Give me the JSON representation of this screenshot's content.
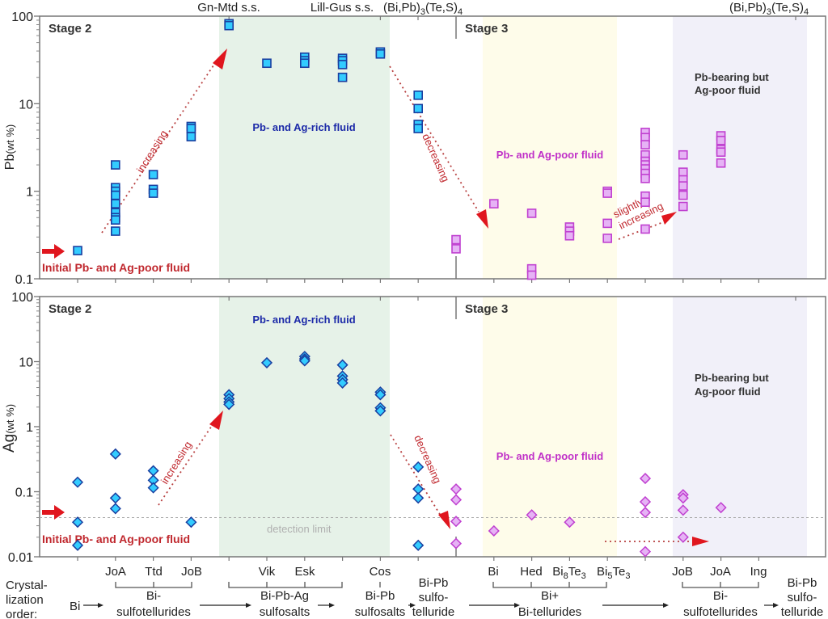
{
  "chart_data": [
    {
      "type": "scatter",
      "panel": "Pb",
      "ylabel_main": "Pb",
      "ylabel_unit": "(wt %)",
      "yscale": "log",
      "ylim": [
        0.1,
        100
      ],
      "yticks": [
        "100",
        "10",
        "1",
        "0.1"
      ],
      "stage_labels": [
        "Stage 2",
        "Stage 3"
      ],
      "annotations": {
        "initial": "Initial Pb- and Ag-poor fluid",
        "rich": "Pb- and Ag-rich fluid",
        "poor": "Pb- and Ag-poor fluid",
        "bearing_line1": "Pb-bearing but",
        "bearing_line2": "Ag-poor fluid",
        "increasing": "increasing",
        "decreasing": "decreasing",
        "slightly_line1": "slightly",
        "slightly_line2": "increasing"
      },
      "top_axis_labels": {
        "gn_mtd": "Gn-Mtd s.s.",
        "lill_gus": "Lill-Gus s.s.",
        "bipbtes_1": "(Bi,Pb)",
        "bipbtes_2": "3",
        "bipbtes_3": "(Te,S)",
        "bipbtes_4": "4"
      },
      "series": [
        {
          "name": "Stage 2",
          "marker": "square",
          "color": "#33ccff",
          "edge": "#1a3fa0",
          "points": [
            [
              1,
              0.21
            ],
            [
              2,
              2.0
            ],
            [
              2,
              1.1
            ],
            [
              2,
              1.0
            ],
            [
              2,
              0.9
            ],
            [
              2,
              0.72
            ],
            [
              2,
              0.57
            ],
            [
              2,
              0.5
            ],
            [
              2,
              0.47
            ],
            [
              2,
              0.35
            ],
            [
              3,
              1.55
            ],
            [
              3,
              1.05
            ],
            [
              3,
              0.95
            ],
            [
              4,
              5.5
            ],
            [
              4,
              5.2
            ],
            [
              4,
              4.2
            ],
            [
              5,
              82
            ],
            [
              5,
              78
            ],
            [
              6,
              29
            ],
            [
              7,
              34
            ],
            [
              7,
              31
            ],
            [
              7,
              29
            ],
            [
              8,
              33
            ],
            [
              8,
              31
            ],
            [
              8,
              28
            ],
            [
              8,
              20
            ],
            [
              9,
              39
            ],
            [
              9,
              37
            ],
            [
              10,
              12.5
            ],
            [
              10,
              8.8
            ],
            [
              10,
              5.8
            ],
            [
              10,
              5.2
            ]
          ]
        },
        {
          "name": "Stage 3",
          "marker": "square",
          "color": "#e6b3f5",
          "edge": "#c040d0",
          "points": [
            [
              11,
              0.28
            ],
            [
              11,
              0.22
            ],
            [
              12,
              0.72
            ],
            [
              13,
              0.56
            ],
            [
              13,
              0.13
            ],
            [
              13,
              0.11
            ],
            [
              14,
              0.39
            ],
            [
              14,
              0.35
            ],
            [
              14,
              0.31
            ],
            [
              15,
              1.0
            ],
            [
              15,
              0.95
            ],
            [
              15,
              0.43
            ],
            [
              15,
              0.29
            ],
            [
              16,
              4.7
            ],
            [
              16,
              4.1
            ],
            [
              16,
              3.4
            ],
            [
              16,
              2.6
            ],
            [
              16,
              2.2
            ],
            [
              16,
              2.0
            ],
            [
              16,
              1.8
            ],
            [
              16,
              1.6
            ],
            [
              16,
              1.4
            ],
            [
              16,
              0.88
            ],
            [
              16,
              0.75
            ],
            [
              16,
              0.37
            ],
            [
              17,
              2.6
            ],
            [
              17,
              1.65
            ],
            [
              17,
              1.35
            ],
            [
              17,
              1.15
            ],
            [
              17,
              0.9
            ],
            [
              17,
              0.67
            ],
            [
              18,
              4.3
            ],
            [
              18,
              3.8
            ],
            [
              18,
              3.0
            ],
            [
              18,
              2.8
            ],
            [
              18,
              2.1
            ]
          ]
        }
      ]
    },
    {
      "type": "scatter",
      "panel": "Ag",
      "ylabel_main": "Ag",
      "ylabel_unit": "(wt %)",
      "yscale": "log",
      "ylim": [
        0.01,
        100
      ],
      "yticks": [
        "100",
        "10",
        "1",
        "0.1",
        "0.01"
      ],
      "stage_labels": [
        "Stage 2",
        "Stage 3"
      ],
      "annotations": {
        "initial": "Initial Pb- and Ag-poor fluid",
        "rich": "Pb- and Ag-rich fluid",
        "poor": "Pb- and Ag-poor fluid",
        "bearing_line1": "Pb-bearing but",
        "bearing_line2": "Ag-poor fluid",
        "increasing": "increasing",
        "decreasing": "decreasing",
        "detection": "detection limit"
      },
      "detection_limit": 0.04,
      "series": [
        {
          "name": "Stage 2",
          "marker": "diamond",
          "color": "#33ccff",
          "edge": "#1a3fa0",
          "points": [
            [
              1,
              0.14
            ],
            [
              1,
              0.034
            ],
            [
              1,
              0.015
            ],
            [
              2,
              0.38
            ],
            [
              2,
              0.08
            ],
            [
              2,
              0.055
            ],
            [
              3,
              0.21
            ],
            [
              3,
              0.15
            ],
            [
              3,
              0.115
            ],
            [
              4,
              0.034
            ],
            [
              5,
              3.1
            ],
            [
              5,
              2.7
            ],
            [
              5,
              2.4
            ],
            [
              5,
              2.2
            ],
            [
              6,
              9.6
            ],
            [
              7,
              12
            ],
            [
              7,
              11
            ],
            [
              7,
              10.3
            ],
            [
              8,
              8.9
            ],
            [
              8,
              6.0
            ],
            [
              8,
              5.3
            ],
            [
              8,
              4.7
            ],
            [
              9,
              3.4
            ],
            [
              9,
              3.1
            ],
            [
              9,
              1.95
            ],
            [
              9,
              1.75
            ],
            [
              10,
              0.24
            ],
            [
              10,
              0.11
            ],
            [
              10,
              0.08
            ],
            [
              10,
              0.015
            ]
          ]
        },
        {
          "name": "Stage 3",
          "marker": "diamond",
          "color": "#e6b3f5",
          "edge": "#c040d0",
          "points": [
            [
              11,
              0.11
            ],
            [
              11,
              0.075
            ],
            [
              11,
              0.035
            ],
            [
              11,
              0.016
            ],
            [
              12,
              0.025
            ],
            [
              13,
              0.044
            ],
            [
              14,
              0.034
            ],
            [
              16,
              0.16
            ],
            [
              16,
              0.07
            ],
            [
              16,
              0.048
            ],
            [
              16,
              0.012
            ],
            [
              17,
              0.09
            ],
            [
              17,
              0.08
            ],
            [
              17,
              0.052
            ],
            [
              17,
              0.02
            ],
            [
              18,
              0.057
            ]
          ]
        }
      ]
    }
  ],
  "x_positions": 19,
  "mineral_labels": {
    "joa1": "JoA",
    "ttd": "Ttd",
    "job1": "JoB",
    "vik": "Vik",
    "esk": "Esk",
    "cos": "Cos",
    "bi": "Bi",
    "hed": "Hed",
    "bi8te3_a": "Bi",
    "bi8te3_b": "8",
    "bi8te3_c": "Te",
    "bi8te3_d": "3",
    "bi5te3_a": "Bi",
    "bi5te3_b": "5",
    "bi5te3_c": "Te",
    "bi5te3_d": "3",
    "job2": "JoB",
    "joa2": "JoA",
    "ing": "Ing"
  },
  "crystallization": {
    "label_line1": "Crystal-",
    "label_line2": "lization",
    "label_line3": "order:",
    "start": "Bi",
    "g1_line1": "Bi-",
    "g1_line2": "sulfotellurides",
    "g2_line1": "Bi-Pb-Ag",
    "g2_line2": "sulfosalts",
    "g3_line1": "Bi-Pb",
    "g3_line2": "sulfosalts",
    "g4_line1": "Bi-Pb",
    "g4_line2": "sulfo-",
    "g4_line3": "telluride",
    "g5_line1": "Bi+",
    "g5_line2": "Bi-tellurides",
    "g6_line1": "Bi-",
    "g6_line2": "sulfotellurides",
    "g7_line1": "Bi-Pb",
    "g7_line2": "sulfo-",
    "g7_line3": "telluride"
  },
  "colors": {
    "rich_band": "#e6f2e8",
    "poor_band": "#fefcea",
    "bearing_band": "#f1f0f9",
    "arrow": "#e0161e",
    "dotted": "#b84040",
    "annotation_red": "#c0282e",
    "annotation_blue": "#1c2aa8",
    "annotation_magenta": "#c030c8",
    "annotation_dark": "#333333",
    "detection": "#aaaaaa"
  }
}
